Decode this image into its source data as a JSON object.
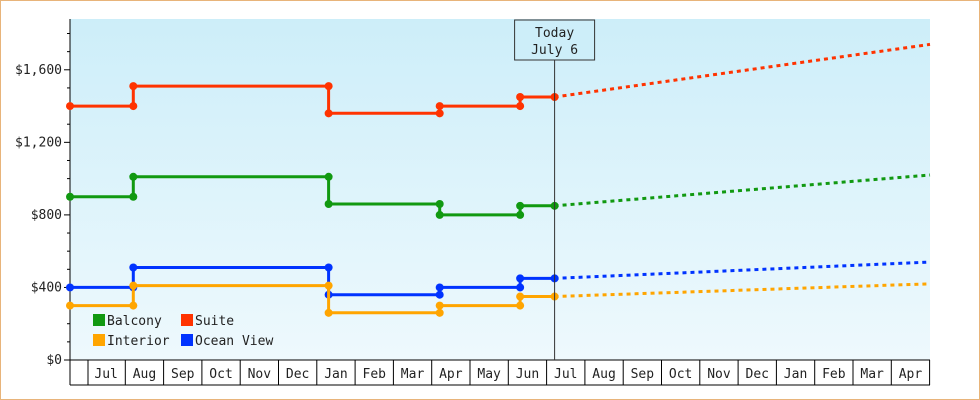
{
  "chart_data": {
    "type": "line",
    "title": "",
    "xlabel": "",
    "ylabel": "",
    "y_ticks": [
      "$0",
      "$400",
      "$800",
      "$1,200",
      "$1,600"
    ],
    "y_tick_values": [
      0,
      400,
      800,
      1200,
      1600
    ],
    "ylim": [
      0,
      1880
    ],
    "month_labels": [
      "Jul",
      "Aug",
      "Sep",
      "Oct",
      "Nov",
      "Dec",
      "Jan",
      "Feb",
      "Mar",
      "Apr",
      "May",
      "Jun",
      "Jul",
      "Aug",
      "Sep",
      "Oct",
      "Nov",
      "Dec",
      "Jan",
      "Feb",
      "Mar",
      "Apr"
    ],
    "xlim": [
      -0.5,
      22
    ],
    "today": {
      "line1": "Today",
      "line2": "July 6",
      "x": 12
    },
    "legend_position": "bottom-left",
    "series": [
      {
        "name": "Suite",
        "color": "#ff3300",
        "history": [
          [
            -0.5,
            1400
          ],
          [
            1,
            1400
          ],
          [
            1,
            1510
          ],
          [
            6.1,
            1510
          ],
          [
            6.1,
            1360
          ],
          [
            9,
            1360
          ],
          [
            9,
            1400
          ],
          [
            11.1,
            1400
          ],
          [
            11.1,
            1450
          ],
          [
            12,
            1450
          ]
        ],
        "markers": [
          [
            -0.5,
            1400
          ],
          [
            1,
            1400
          ],
          [
            1,
            1510
          ],
          [
            6.1,
            1510
          ],
          [
            6.1,
            1360
          ],
          [
            9,
            1360
          ],
          [
            9,
            1400
          ],
          [
            11.1,
            1400
          ],
          [
            11.1,
            1450
          ],
          [
            12,
            1450
          ]
        ],
        "forecast": [
          [
            12,
            1450
          ],
          [
            22,
            1740
          ]
        ]
      },
      {
        "name": "Balcony",
        "color": "#119911",
        "history": [
          [
            -0.5,
            900
          ],
          [
            1,
            900
          ],
          [
            1,
            1010
          ],
          [
            6.1,
            1010
          ],
          [
            6.1,
            860
          ],
          [
            9,
            860
          ],
          [
            9,
            800
          ],
          [
            11.1,
            800
          ],
          [
            11.1,
            850
          ],
          [
            12,
            850
          ]
        ],
        "markers": [
          [
            -0.5,
            900
          ],
          [
            1,
            900
          ],
          [
            1,
            1010
          ],
          [
            6.1,
            1010
          ],
          [
            6.1,
            860
          ],
          [
            9,
            860
          ],
          [
            9,
            800
          ],
          [
            11.1,
            800
          ],
          [
            11.1,
            850
          ],
          [
            12,
            850
          ]
        ],
        "forecast": [
          [
            12,
            850
          ],
          [
            22,
            1020
          ]
        ]
      },
      {
        "name": "Ocean View",
        "color": "#0033ff",
        "history": [
          [
            -0.5,
            400
          ],
          [
            1,
            400
          ],
          [
            1,
            510
          ],
          [
            6.1,
            510
          ],
          [
            6.1,
            360
          ],
          [
            9,
            360
          ],
          [
            9,
            400
          ],
          [
            11.1,
            400
          ],
          [
            11.1,
            450
          ],
          [
            12,
            450
          ]
        ],
        "markers": [
          [
            -0.5,
            400
          ],
          [
            1,
            400
          ],
          [
            1,
            510
          ],
          [
            6.1,
            510
          ],
          [
            6.1,
            360
          ],
          [
            9,
            360
          ],
          [
            9,
            400
          ],
          [
            11.1,
            400
          ],
          [
            11.1,
            450
          ],
          [
            12,
            450
          ]
        ],
        "forecast": [
          [
            12,
            450
          ],
          [
            22,
            540
          ]
        ]
      },
      {
        "name": "Interior",
        "color": "#ffa500",
        "history": [
          [
            -0.5,
            300
          ],
          [
            1,
            300
          ],
          [
            1,
            410
          ],
          [
            6.1,
            410
          ],
          [
            6.1,
            260
          ],
          [
            9,
            260
          ],
          [
            9,
            300
          ],
          [
            11.1,
            300
          ],
          [
            11.1,
            350
          ],
          [
            12,
            350
          ]
        ],
        "markers": [
          [
            -0.5,
            300
          ],
          [
            1,
            300
          ],
          [
            1,
            410
          ],
          [
            6.1,
            410
          ],
          [
            6.1,
            260
          ],
          [
            9,
            260
          ],
          [
            9,
            300
          ],
          [
            11.1,
            300
          ],
          [
            11.1,
            350
          ],
          [
            12,
            350
          ]
        ],
        "forecast": [
          [
            12,
            350
          ],
          [
            22,
            420
          ]
        ]
      }
    ],
    "legend_order": [
      "Balcony",
      "Suite",
      "Interior",
      "Ocean View"
    ],
    "background_colors": {
      "top": "#cdeef9",
      "bottom": "#eef9fd"
    }
  }
}
